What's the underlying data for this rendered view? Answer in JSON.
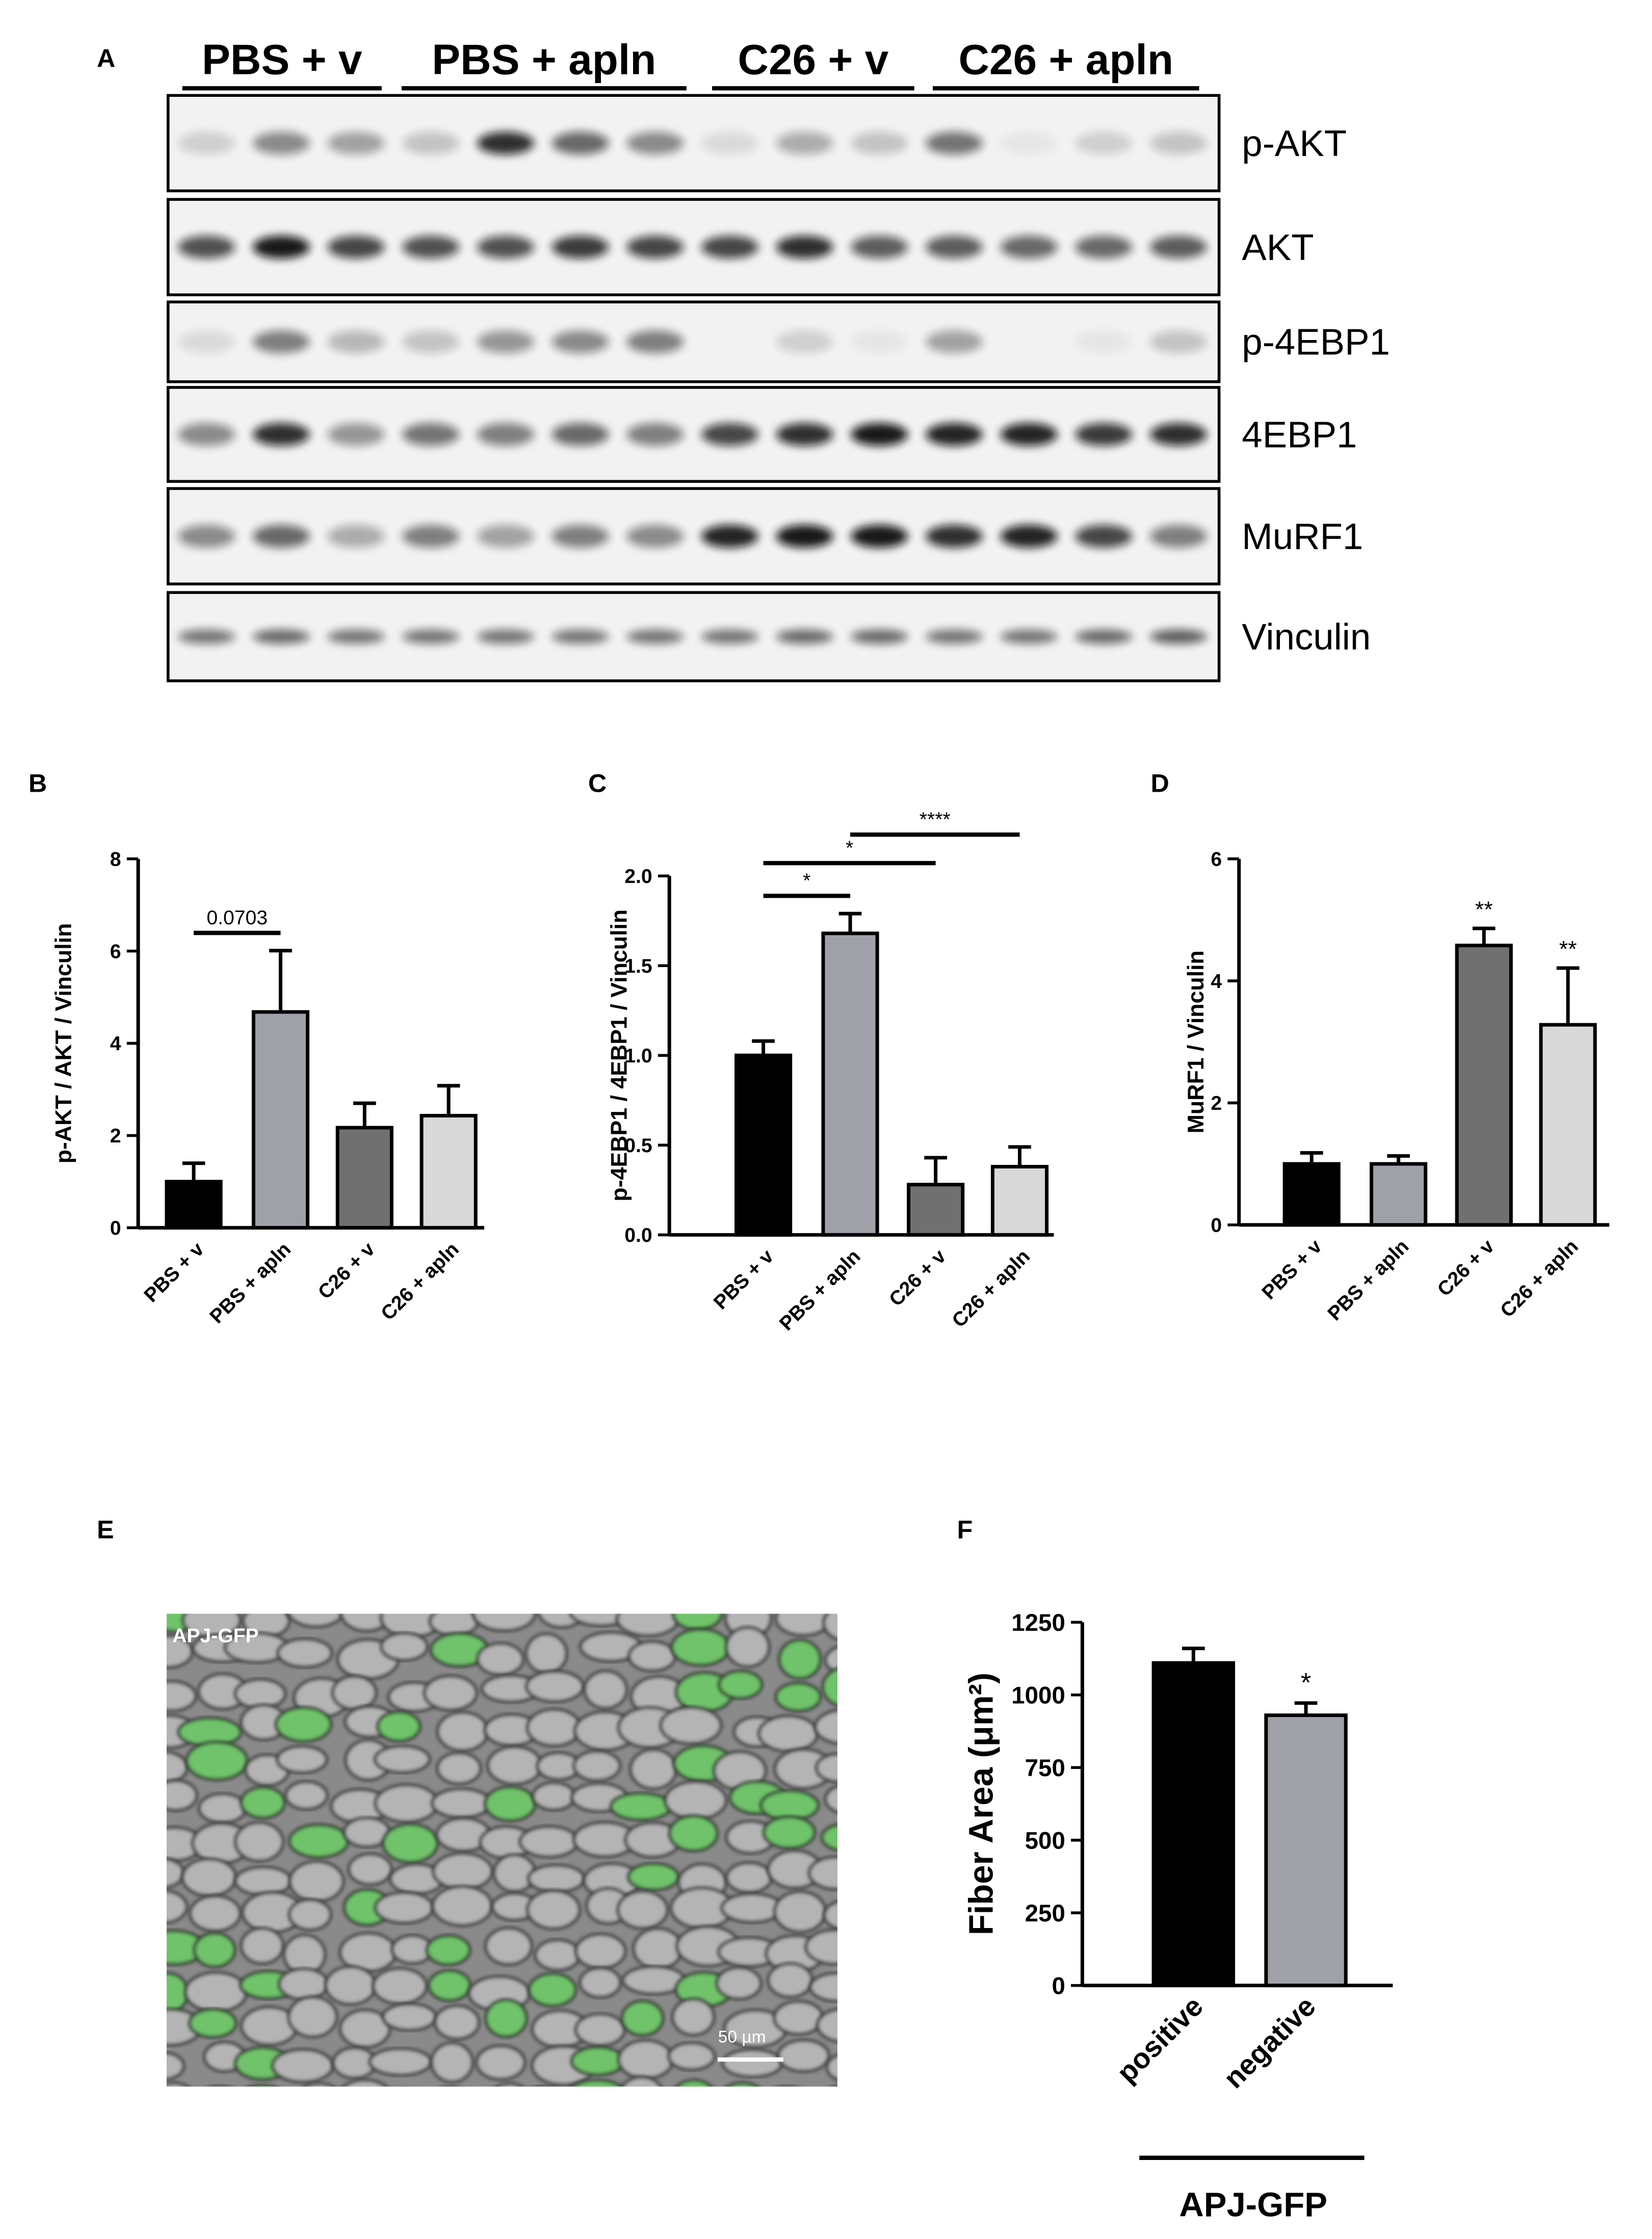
{
  "figure": {
    "panel_labels": [
      "A",
      "B",
      "C",
      "D",
      "E",
      "F"
    ],
    "blot": {
      "groups": [
        "PBS + v",
        "PBS + apln",
        "C26 + v",
        "C26 + apln"
      ],
      "proteins": [
        "p-AKT",
        "AKT",
        "p-4EBP1",
        "4EBP1",
        "MuRF1",
        "Vinculin"
      ]
    },
    "micrograph": {
      "label": "APJ-GFP",
      "scale_bar": "50 µm"
    }
  },
  "chart_data": [
    {
      "type": "bar",
      "ylabel": "p-AKT / AKT / Vinculin",
      "categories": [
        "PBS + v",
        "PBS + apln",
        "C26 + v",
        "C26 + apln"
      ],
      "values": [
        1.0,
        4.68,
        2.17,
        2.43
      ],
      "errors": [
        0.4,
        1.33,
        0.53,
        0.65
      ],
      "colors": [
        "#000000",
        "#a0a0a8",
        "#707070",
        "#d8d8d8"
      ],
      "ylim": [
        0,
        8
      ],
      "yticks": [
        0,
        2,
        4,
        6,
        8
      ],
      "brackets": [
        {
          "text": "0.0703",
          "from": "PBS + v",
          "to": "PBS + apln"
        }
      ],
      "annotations": []
    },
    {
      "type": "bar",
      "ylabel": "p-4EBP1 / 4EBP1 / Vinculin",
      "categories": [
        "PBS + v",
        "PBS + apln",
        "C26 + v",
        "C26 + apln"
      ],
      "values": [
        1.0,
        1.68,
        0.28,
        0.38
      ],
      "errors": [
        0.08,
        0.11,
        0.15,
        0.11
      ],
      "colors": [
        "#000000",
        "#a0a0a8",
        "#707070",
        "#d8d8d8"
      ],
      "ylim": [
        0,
        2
      ],
      "yticks": [
        {
          "value": 0,
          "label": "0.0"
        },
        {
          "value": 0.5,
          "label": "0.5"
        },
        {
          "value": 1,
          "label": "1.0"
        },
        {
          "value": 1.5,
          "label": "1.5"
        },
        {
          "value": 2,
          "label": "2.0"
        }
      ],
      "brackets": [
        {
          "text": "*",
          "from": "PBS + v",
          "to": "PBS + apln"
        },
        {
          "text": "*",
          "from": "PBS + v",
          "to": "C26 + v"
        },
        {
          "text": "****",
          "from": "PBS + apln",
          "to": "C26 + apln"
        }
      ],
      "annotations": []
    },
    {
      "type": "bar",
      "ylabel": "MuRF1 / Vinculin",
      "categories": [
        "PBS + v",
        "PBS + apln",
        "C26 + v",
        "C26 + apln"
      ],
      "values": [
        1.0,
        1.0,
        4.58,
        3.28
      ],
      "errors": [
        0.18,
        0.13,
        0.28,
        0.93
      ],
      "colors": [
        "#000000",
        "#a0a0a8",
        "#707070",
        "#d8d8d8"
      ],
      "ylim": [
        0,
        6
      ],
      "yticks": [
        0,
        2,
        4,
        6
      ],
      "brackets": [],
      "annotations": [
        {
          "text": "**",
          "category": "C26 + v"
        },
        {
          "text": "**",
          "category": "C26 + apln"
        }
      ]
    },
    {
      "type": "bar",
      "ylabel": "Fiber Area (μm²)",
      "xlabel": "APJ-GFP",
      "categories": [
        "positive",
        "negative"
      ],
      "values": [
        1110,
        930
      ],
      "errors": [
        50,
        42
      ],
      "colors": [
        "#000000",
        "#a0a0a8"
      ],
      "ylim": [
        0,
        1250
      ],
      "yticks": [
        0,
        250,
        500,
        750,
        1000,
        1250
      ],
      "brackets": [],
      "annotations": [
        {
          "text": "*",
          "category": "negative"
        }
      ]
    }
  ]
}
